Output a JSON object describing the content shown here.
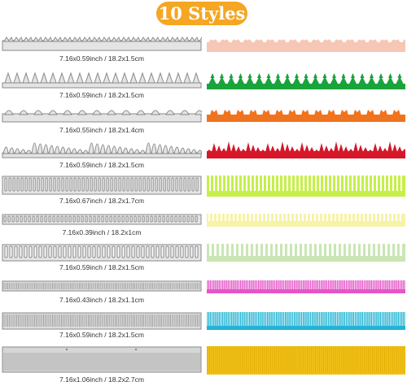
{
  "title": "10 Styles",
  "colors": {
    "badge": "#f5a623",
    "die_metal": "#cfcfcf"
  },
  "rows": [
    {
      "dimension": "7.16x0.59inch / 18.2x1.5cm",
      "die_icon": "scallop-heart-die-icon",
      "strip_color": "#f6c7b5",
      "strip_icon": "heart-border-strip-icon"
    },
    {
      "dimension": "7.16x0.59inch / 18.2x1.5cm",
      "die_icon": "tree-border-die-icon",
      "strip_color": "#1aa33b",
      "strip_icon": "tree-border-strip-icon"
    },
    {
      "dimension": "7.16x0.55inch / 18.2x1.4cm",
      "die_icon": "tulip-border-die-icon",
      "strip_color": "#f0731f",
      "strip_icon": "tulip-border-strip-icon"
    },
    {
      "dimension": "7.16x0.59inch / 18.2x1.5cm",
      "die_icon": "grass-border-die-icon",
      "strip_color": "#d6172a",
      "strip_icon": "grass-border-strip-icon"
    },
    {
      "dimension": "7.16x0.67inch / 18.2x1.7cm",
      "die_icon": "fringe-border-die-icon",
      "strip_color": "#c7ef4a",
      "strip_icon": "fringe-border-strip-icon"
    },
    {
      "dimension": "7.16x0.39inch / 18.2x1cm",
      "die_icon": "zigzag-border-die-icon",
      "strip_color": "#f7f3a8",
      "strip_icon": "zigzag-border-strip-icon"
    },
    {
      "dimension": "7.16x0.59inch / 18.2x1.5cm",
      "die_icon": "wide-fringe-die-icon",
      "strip_color": "#c9e6b4",
      "strip_icon": "wide-fringe-strip-icon"
    },
    {
      "dimension": "7.16x0.43inch / 18.2x1.1cm",
      "die_icon": "fine-fringe-die-icon",
      "strip_color": "#e455c8",
      "strip_icon": "fine-fringe-strip-icon"
    },
    {
      "dimension": "7.16x0.59inch / 18.2x1.5cm",
      "die_icon": "long-fine-fringe-die-icon",
      "strip_color": "#22b4d4",
      "strip_icon": "long-fine-fringe-strip-icon"
    },
    {
      "dimension": "7.16x1.06inch / 18.2x2.7cm",
      "die_icon": "tall-fringe-die-icon",
      "strip_color": "#f1c21b",
      "strip_icon": "tall-fringe-strip-icon"
    }
  ]
}
